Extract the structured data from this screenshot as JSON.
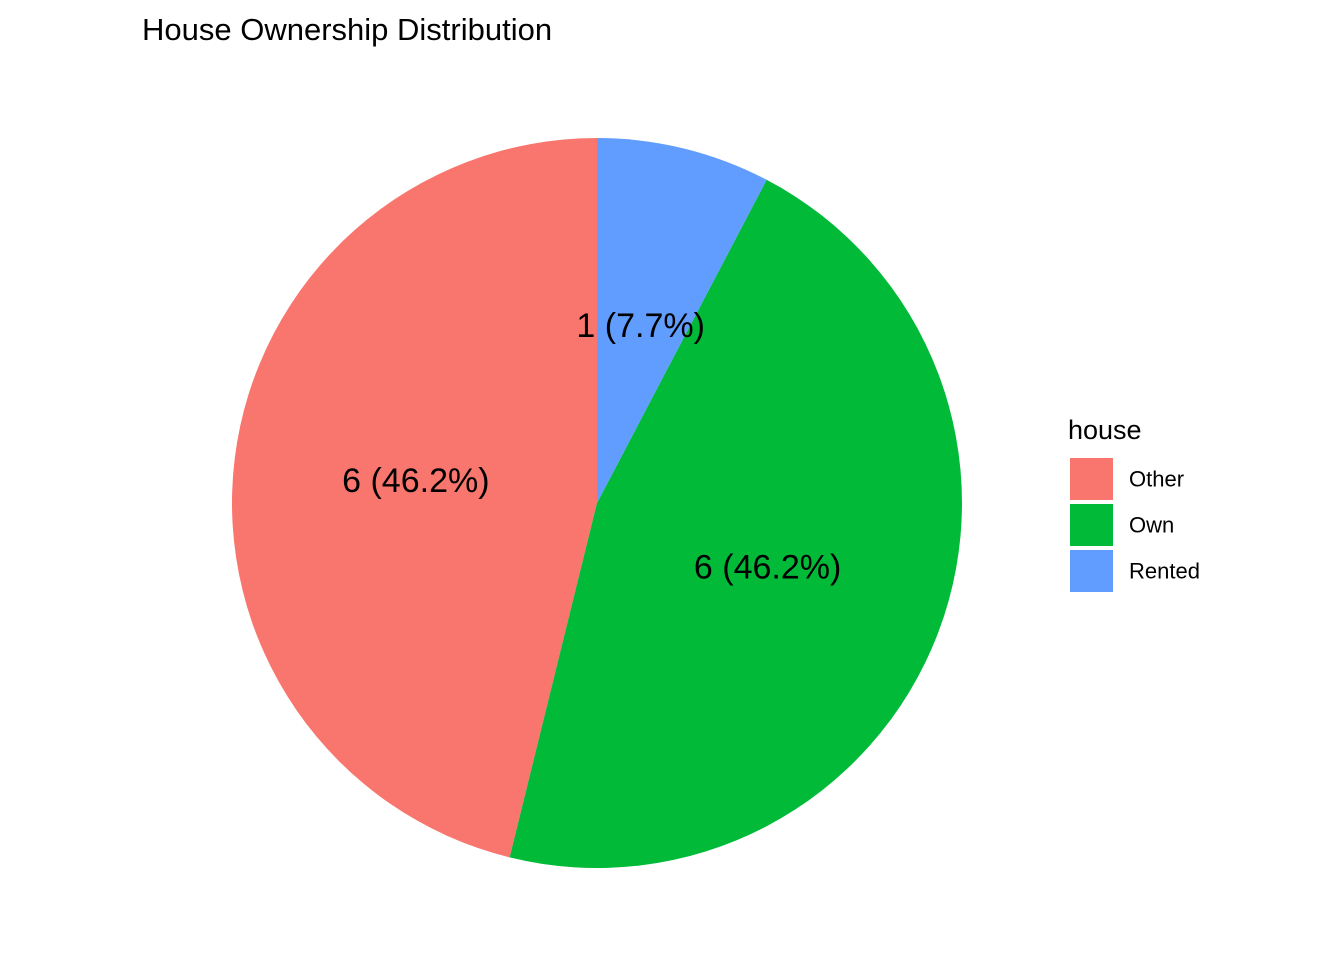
{
  "chart_data": {
    "type": "pie",
    "title": "House Ownership Distribution",
    "legend": {
      "title": "house",
      "position": "right"
    },
    "slices": [
      {
        "category": "Other",
        "value": 6,
        "percent": 46.2,
        "label": "6 (46.2%)",
        "color": "#F8766D"
      },
      {
        "category": "Own",
        "value": 6,
        "percent": 46.2,
        "label": "6 (46.2%)",
        "color": "#00BA38"
      },
      {
        "category": "Rented",
        "value": 1,
        "percent": 7.7,
        "label": "1 (7.7%)",
        "color": "#619CFF"
      }
    ]
  }
}
